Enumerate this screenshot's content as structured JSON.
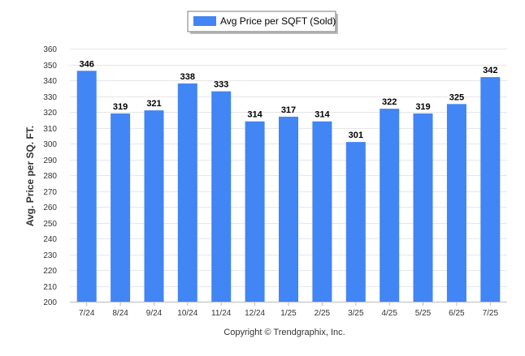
{
  "chart_data": {
    "type": "bar",
    "categories": [
      "7/24",
      "8/24",
      "9/24",
      "10/24",
      "11/24",
      "12/24",
      "1/25",
      "2/25",
      "3/25",
      "4/25",
      "5/25",
      "6/25",
      "7/25"
    ],
    "series": [
      {
        "name": "Avg Price per SQFT (Sold)",
        "values": [
          346,
          319,
          321,
          338,
          333,
          314,
          317,
          314,
          301,
          322,
          319,
          325,
          342
        ],
        "color": "#4285f4"
      }
    ],
    "ylabel": "Avg. Price per SQ. FT.",
    "xlabel": "",
    "ylim": [
      200,
      360
    ],
    "yticks": [
      200,
      210,
      220,
      230,
      240,
      250,
      260,
      270,
      280,
      290,
      300,
      310,
      320,
      330,
      340,
      350,
      360
    ],
    "grid": true,
    "legend_position": "top-center",
    "data_labels": true
  },
  "footer": {
    "copyright": "Copyright © Trendgraphix, Inc."
  }
}
